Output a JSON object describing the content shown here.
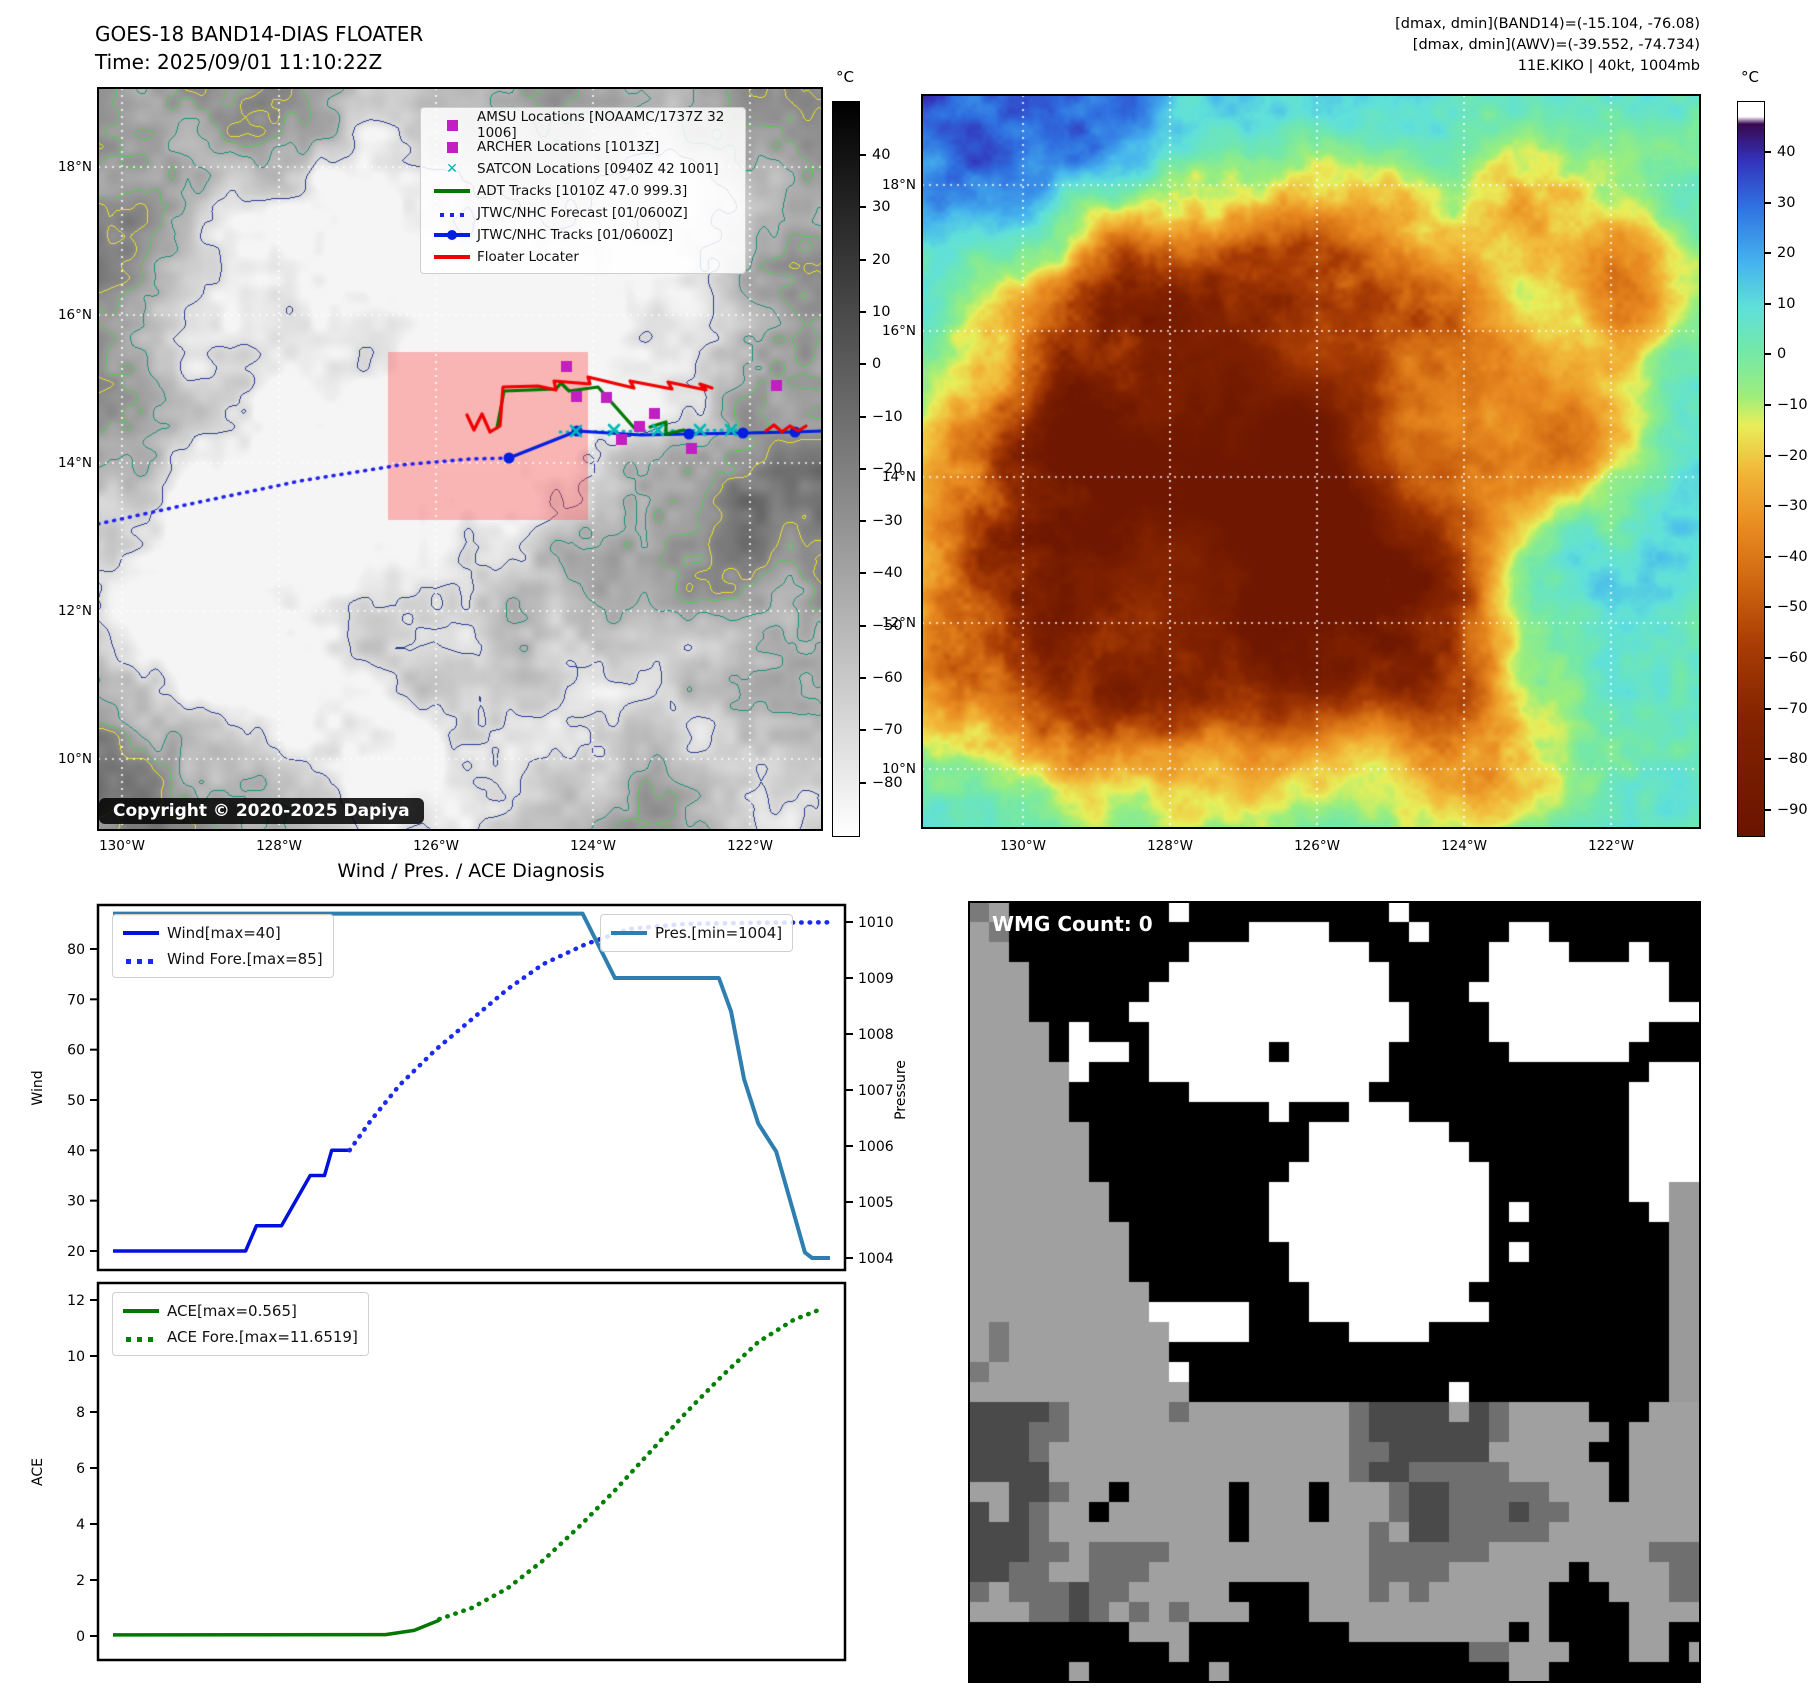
{
  "panel_tl": {
    "title_line1": "GOES-18 BAND14-DIAS FLOATER",
    "title_line2": "Time: 2025/09/01 11:10:22Z",
    "copyright": "Copyright © 2020-2025 Dapiya",
    "legend_items": [
      {
        "label": "AMSU Locations [NOAAMC/1737Z 32 1006]",
        "marker": "square",
        "color": "#c21fc2"
      },
      {
        "label": "ARCHER Locations [1013Z]",
        "marker": "square",
        "color": "#c21fc2"
      },
      {
        "label": "SATCON Locations [0940Z 42 1001]",
        "marker": "x",
        "color": "#00b8b8"
      },
      {
        "label": "ADT Tracks [1010Z 47.0 999.3]",
        "marker": "line",
        "color": "#007800"
      },
      {
        "label": "JTWC/NHC Forecast [01/0600Z]",
        "marker": "dotted",
        "color": "#2020f0"
      },
      {
        "label": "JTWC/NHC Tracks [01/0600Z]",
        "marker": "line-dot",
        "color": "#0020e0"
      },
      {
        "label": "Floater Locater",
        "marker": "line",
        "color": "#f00000"
      }
    ],
    "lat_tick_labels": [
      "18°N",
      "16°N",
      "14°N",
      "12°N",
      "10°N"
    ],
    "lon_tick_labels": [
      "130°W",
      "128°W",
      "126°W",
      "124°W",
      "122°W"
    ],
    "colorbar": {
      "unit": "°C",
      "ticks": [
        40,
        30,
        20,
        10,
        0,
        -10,
        -20,
        -30,
        -40,
        -50,
        -60,
        -70,
        -80
      ]
    },
    "tracks": {
      "floater_rect": [
        388,
        352,
        200,
        168
      ],
      "jtwc_forecast": [
        [
          98,
          524
        ],
        [
          190,
          504
        ],
        [
          300,
          481
        ],
        [
          400,
          465
        ],
        [
          470,
          459
        ],
        [
          509,
          458
        ]
      ],
      "jtwc_track": [
        [
          822,
          431
        ],
        [
          795,
          432
        ],
        [
          743,
          433
        ],
        [
          689,
          434
        ],
        [
          641,
          435
        ],
        [
          577,
          431
        ],
        [
          509,
          458
        ]
      ],
      "jtwc_markers": [
        [
          795,
          432
        ],
        [
          743,
          433
        ],
        [
          689,
          434
        ],
        [
          577,
          431
        ],
        [
          509,
          458
        ]
      ],
      "adt_track": [
        [
          497,
          428
        ],
        [
          504,
          391
        ],
        [
          556,
          389
        ],
        [
          561,
          383
        ],
        [
          569,
          391
        ],
        [
          598,
          387
        ],
        [
          636,
          430
        ]
      ],
      "adt_track2": [
        [
          650,
          427
        ],
        [
          666,
          422
        ],
        [
          666,
          434
        ],
        [
          684,
          430
        ]
      ],
      "floater_track": [
        [
          467,
          415
        ],
        [
          474,
          430
        ],
        [
          482,
          414
        ],
        [
          490,
          432
        ],
        [
          500,
          426
        ],
        [
          503,
          387
        ],
        [
          538,
          386
        ],
        [
          556,
          390
        ],
        [
          554,
          381
        ],
        [
          590,
          384
        ],
        [
          588,
          377
        ],
        [
          634,
          388
        ],
        [
          630,
          381
        ],
        [
          672,
          389
        ],
        [
          668,
          382
        ],
        [
          706,
          390
        ],
        [
          700,
          384
        ],
        [
          712,
          388
        ]
      ],
      "floater_track2": [
        [
          766,
          431
        ],
        [
          774,
          425
        ],
        [
          782,
          432
        ],
        [
          790,
          426
        ],
        [
          798,
          431
        ],
        [
          806,
          426
        ]
      ],
      "satcon_line": [
        [
          560,
          432
        ],
        [
          736,
          430
        ]
      ],
      "satcon_markers": [
        [
          576,
          431
        ],
        [
          614,
          430
        ],
        [
          658,
          430
        ],
        [
          700,
          430
        ],
        [
          731,
          430
        ]
      ],
      "amsu_squares": [
        [
          566,
          366
        ],
        [
          576,
          396
        ],
        [
          606,
          397
        ],
        [
          654,
          413
        ],
        [
          639,
          426
        ],
        [
          691,
          448
        ],
        [
          621,
          439
        ],
        [
          776,
          385
        ]
      ]
    },
    "colors": {
      "contour_yellow": "#e8e028",
      "contour_green": "#55c656",
      "contour_teal": "#1f8f7a",
      "contour_navy": "#2a3c8f",
      "floater_fill": "rgba(255,90,90,0.42)"
    }
  },
  "panel_tr": {
    "info_lines": [
      "[dmax, dmin](BAND14)=(-15.104, -76.08)",
      "[dmax, dmin](AWV)=(-39.552, -74.734)",
      "11E.KIKO | 40kt, 1004mb"
    ],
    "lat_tick_labels": [
      "18°N",
      "16°N",
      "14°N",
      "12°N",
      "10°N"
    ],
    "lon_tick_labels": [
      "130°W",
      "128°W",
      "126°W",
      "124°W",
      "122°W"
    ],
    "colorbar": {
      "unit": "°C",
      "ticks": [
        40,
        30,
        20,
        10,
        0,
        -10,
        -20,
        -30,
        -40,
        -50,
        -60,
        -70,
        -80,
        -90
      ],
      "stops": [
        [
          0,
          "#ffffff"
        ],
        [
          2,
          "#ffffff"
        ],
        [
          3,
          "#380850"
        ],
        [
          8,
          "#3333bb"
        ],
        [
          14,
          "#2f6fe0"
        ],
        [
          22,
          "#46b4ee"
        ],
        [
          28,
          "#5fe0da"
        ],
        [
          34,
          "#74e8a8"
        ],
        [
          40,
          "#9cee7c"
        ],
        [
          44,
          "#e8ee5a"
        ],
        [
          50,
          "#f2b93a"
        ],
        [
          58,
          "#e88a20"
        ],
        [
          66,
          "#cc6410"
        ],
        [
          74,
          "#a83c04"
        ],
        [
          84,
          "#832300"
        ],
        [
          100,
          "#6a1400"
        ]
      ]
    }
  },
  "panel_br": {
    "wmg_count_label": "WMG Count: 0"
  },
  "chart_data": [
    {
      "type": "line",
      "title": "Wind / Pres. / ACE Diagnosis",
      "ylabel_left": "Wind",
      "ylabel_right": "Pressure",
      "yticks_left": [
        80,
        70,
        60,
        50,
        40,
        30,
        20
      ],
      "yticks_right": [
        1010,
        1009,
        1008,
        1007,
        1006,
        1005,
        1004
      ],
      "ylim_left": [
        16,
        89
      ],
      "ylim_right": [
        1003.6,
        1010.4
      ],
      "grid": false,
      "series": [
        {
          "name": "Wind[max=40]",
          "axis": "left",
          "style": "solid",
          "color": "#0010dd",
          "legend": "left",
          "points": [
            [
              0,
              20
            ],
            [
              0.185,
              20
            ],
            [
              0.2,
              25
            ],
            [
              0.235,
              25
            ],
            [
              0.275,
              35
            ],
            [
              0.295,
              35
            ],
            [
              0.305,
              40
            ],
            [
              0.33,
              40
            ]
          ]
        },
        {
          "name": "Wind Fore.[max=85]",
          "axis": "left",
          "style": "dotted",
          "color": "#1a2aee",
          "legend": "left",
          "points": [
            [
              0.33,
              40
            ],
            [
              0.36,
              46
            ],
            [
              0.4,
              53
            ],
            [
              0.45,
              60
            ],
            [
              0.5,
              66
            ],
            [
              0.55,
              72
            ],
            [
              0.6,
              77
            ],
            [
              0.66,
              81
            ],
            [
              0.72,
              84
            ],
            [
              0.8,
              85
            ],
            [
              0.9,
              85.2
            ],
            [
              1.0,
              85.3
            ]
          ]
        },
        {
          "name": "Pres.[min=1004]",
          "axis": "right",
          "style": "solid",
          "color": "#2e7eb0",
          "legend": "right",
          "points": [
            [
              0,
              1010.15
            ],
            [
              0.655,
              1010.15
            ],
            [
              0.7,
              1009
            ],
            [
              0.845,
              1009
            ],
            [
              0.862,
              1008.4
            ],
            [
              0.88,
              1007.2
            ],
            [
              0.9,
              1006.4
            ],
            [
              0.925,
              1005.9
            ],
            [
              0.945,
              1005.0
            ],
            [
              0.965,
              1004.1
            ],
            [
              0.975,
              1004
            ],
            [
              1.0,
              1004
            ]
          ]
        }
      ]
    },
    {
      "type": "line",
      "title": "",
      "ylabel_left": "ACE",
      "yticks_left": [
        12,
        10,
        8,
        6,
        4,
        2,
        0
      ],
      "ylim_left": [
        -1,
        12.6
      ],
      "grid": false,
      "series": [
        {
          "name": "ACE[max=0.565]",
          "axis": "left",
          "style": "solid",
          "color": "#007800",
          "legend": "left",
          "points": [
            [
              0,
              0.04
            ],
            [
              0.38,
              0.05
            ],
            [
              0.42,
              0.2
            ],
            [
              0.455,
              0.565
            ]
          ]
        },
        {
          "name": "ACE Fore.[max=11.6519]",
          "axis": "left",
          "style": "dotted",
          "color": "#008000",
          "legend": "left",
          "points": [
            [
              0.455,
              0.6
            ],
            [
              0.5,
              1.0
            ],
            [
              0.55,
              1.7
            ],
            [
              0.6,
              2.7
            ],
            [
              0.65,
              3.9
            ],
            [
              0.7,
              5.2
            ],
            [
              0.75,
              6.6
            ],
            [
              0.8,
              8.0
            ],
            [
              0.85,
              9.3
            ],
            [
              0.9,
              10.5
            ],
            [
              0.95,
              11.3
            ],
            [
              0.985,
              11.65
            ]
          ]
        }
      ]
    }
  ]
}
